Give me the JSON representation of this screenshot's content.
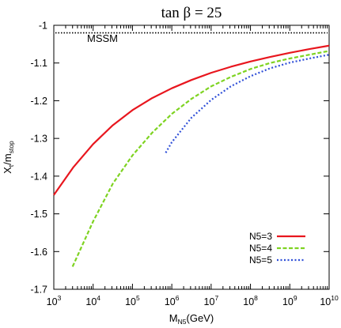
{
  "chart_data": {
    "type": "line",
    "title": "tan β = 25",
    "xlabel": "M_N5(GeV)",
    "xlabel_main": "M",
    "xlabel_sub": "N5",
    "xlabel_unit": "(GeV)",
    "ylabel": "X_t/m_stop",
    "ylabel_main": "X",
    "ylabel_sub1": "t",
    "ylabel_mid": "/m",
    "ylabel_sub2": "stop",
    "xscale": "log",
    "xlim": [
      1000,
      10000000000
    ],
    "ylim": [
      -1.7,
      -1.0
    ],
    "xticks": [
      {
        "value": 1000,
        "base": "10",
        "exp": "3"
      },
      {
        "value": 10000,
        "base": "10",
        "exp": "4"
      },
      {
        "value": 100000,
        "base": "10",
        "exp": "5"
      },
      {
        "value": 1000000,
        "base": "10",
        "exp": "6"
      },
      {
        "value": 10000000,
        "base": "10",
        "exp": "7"
      },
      {
        "value": 100000000,
        "base": "10",
        "exp": "8"
      },
      {
        "value": 1000000000,
        "base": "10",
        "exp": "9"
      },
      {
        "value": 10000000000,
        "base": "10",
        "exp": "10"
      }
    ],
    "yticks": [
      {
        "value": -1.0,
        "label": "-1"
      },
      {
        "value": -1.1,
        "label": "-1.1"
      },
      {
        "value": -1.2,
        "label": "-1.2"
      },
      {
        "value": -1.3,
        "label": "-1.3"
      },
      {
        "value": -1.4,
        "label": "-1.4"
      },
      {
        "value": -1.5,
        "label": "-1.5"
      },
      {
        "value": -1.6,
        "label": "-1.6"
      },
      {
        "value": -1.7,
        "label": "-1.7"
      }
    ],
    "grid": false,
    "legend_position": "bottom-right",
    "reference_line": {
      "name": "MSSM",
      "y": -1.02,
      "color": "#000000",
      "style": "dotted"
    },
    "series": [
      {
        "name": "N5=3",
        "color": "#e8161e",
        "style": "solid",
        "x": [
          1000,
          3162,
          10000,
          31623,
          100000,
          316228,
          1000000,
          3162278,
          10000000,
          31622777,
          100000000,
          316227766,
          1000000000,
          3162277660,
          10000000000
        ],
        "y": [
          -1.45,
          -1.376,
          -1.315,
          -1.265,
          -1.225,
          -1.193,
          -1.167,
          -1.145,
          -1.126,
          -1.11,
          -1.096,
          -1.084,
          -1.073,
          -1.063,
          -1.054
        ]
      },
      {
        "name": "N5=4",
        "color": "#7ed321",
        "style": "dashed",
        "x": [
          3000,
          10000,
          31623,
          100000,
          316228,
          1000000,
          3162278,
          10000000,
          31622777,
          100000000,
          316227766,
          1000000000,
          3162277660,
          10000000000
        ],
        "y": [
          -1.64,
          -1.52,
          -1.42,
          -1.345,
          -1.285,
          -1.235,
          -1.195,
          -1.162,
          -1.137,
          -1.116,
          -1.1,
          -1.088,
          -1.078,
          -1.068
        ]
      },
      {
        "name": "N5=5",
        "color": "#2f4fd8",
        "style": "dotted",
        "x": [
          700000,
          1000000,
          3162278,
          10000000,
          31622777,
          100000000,
          316227766,
          1000000000,
          3162277660,
          10000000000
        ],
        "y": [
          -1.338,
          -1.31,
          -1.245,
          -1.198,
          -1.162,
          -1.135,
          -1.114,
          -1.099,
          -1.088,
          -1.078
        ]
      }
    ]
  }
}
